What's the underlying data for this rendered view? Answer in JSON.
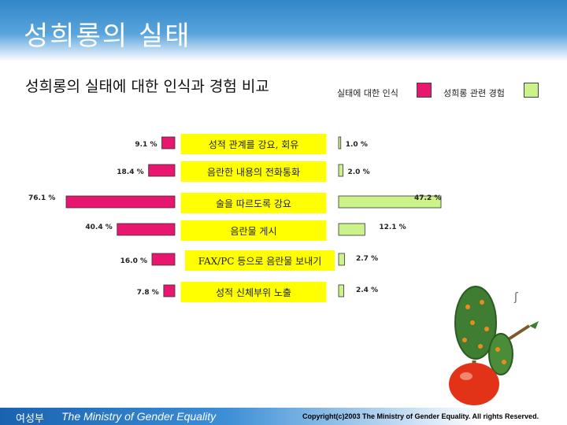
{
  "header": {
    "title": "성희롱의 실태"
  },
  "chart_data": {
    "type": "bar",
    "title": "성희롱의 실태에 대한 인식과 경험 비교",
    "categories": [
      "성적 관계를 강요, 회유",
      "음란한 내용의 전화통화",
      "술을 따르도록 강요",
      "음란물 게시",
      "FAX/PC 등으로 음란물 보내기",
      "성적 신체부위 노출"
    ],
    "series": [
      {
        "name": "실태에 대한 인식",
        "color": "#e8166e",
        "values": [
          9.1,
          18.4,
          76.1,
          40.4,
          16.0,
          7.8
        ],
        "labels": [
          "9.1 %",
          "18.4 %",
          "76.1 %",
          "40.4 %",
          "16.0 %",
          "7.8 %"
        ]
      },
      {
        "name": "성희롱 관련 경험",
        "color": "#ccf28a",
        "values": [
          1.0,
          2.0,
          47.2,
          12.1,
          2.7,
          2.4
        ],
        "labels": [
          "1.0 %",
          "2.0 %",
          "47.2 %",
          "12.1 %",
          "2.7 %",
          "2.4 %"
        ]
      }
    ],
    "legend_position": "top-right",
    "grid": false
  },
  "footer": {
    "org_kr": "여성부",
    "org_en": "The Ministry of Gender Equality",
    "copyright": "Copyright(c)2003 The Ministry of Gender Equality. All rights Reserved."
  }
}
